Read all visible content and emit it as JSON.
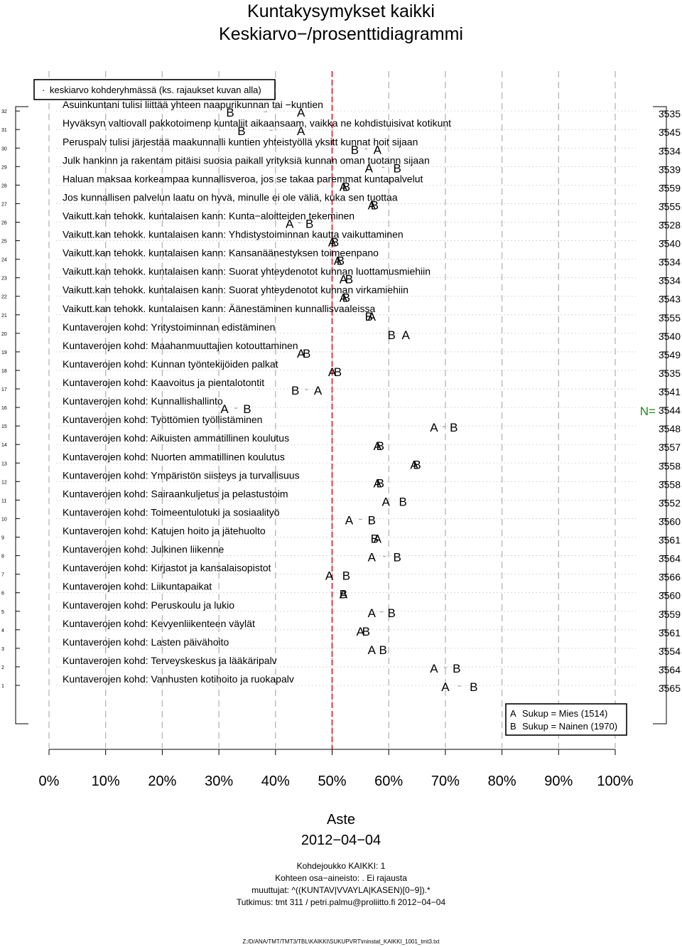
{
  "page": {
    "title_line1": "Kuntakysymykset kaikki",
    "title_line2": "Keskiarvo−/prosenttidiagrammi"
  },
  "footer": {
    "axis_title": "Aste",
    "date": "2012−04−04",
    "lines": [
      "Kohdejoukko KAIKKI: 1",
      "Kohteen osa−aineisto: . Ei rajausta",
      "muuttujat: ^((KUNTAV|VVAYLA|KASEN)[0−9]).*",
      "Tutkimus: tmt 311 / petri.palmu@proliitto.fi 2012−04−04"
    ],
    "file_path": "Z:/D/ANA/TMT/TMT3/TBL\\KAIKKI\\SUKUPVRT\\minstat_KAIKKI_1001_tmt3.txt"
  },
  "chart_data": {
    "type": "scatter",
    "xlim": [
      0,
      100
    ],
    "x_ticks": [
      "0%",
      "10%",
      "20%",
      "30%",
      "40%",
      "50%",
      "60%",
      "70%",
      "80%",
      "90%",
      "100%"
    ],
    "reference_line": 50,
    "reference_color": "#e0181e",
    "grid": true,
    "top_note": "keskiarvo kohderyhmässä (ks. rajaukset kuvan alla)",
    "n_label": "N=",
    "n_label_color": "#1a8a1a",
    "legend_position": "bottom-right",
    "groups": [
      {
        "marker": "A",
        "name": "Sukup = Mies (1514)"
      },
      {
        "marker": "B",
        "name": "Sukup = Nainen (1970)"
      }
    ],
    "items": [
      {
        "row": 32,
        "label": "Asuinkuntani tulisi liittää yhteen naapurikunnan tai −kuntien",
        "a": 44.5,
        "b": 32,
        "n": 3535
      },
      {
        "row": 31,
        "label": "Hyväksyn valtiovall pakkotoimenp kuntaliit aikaansaam, vaikka ne kohdistuisivat kotikunt",
        "a": 44.5,
        "b": 34,
        "n": 3545
      },
      {
        "row": 30,
        "label": "Peruspalv tulisi järjestää maakunnalli kuntien yhteistyöllä yksitt kunnat hoit sijaan",
        "a": 58,
        "b": 54,
        "n": 3534
      },
      {
        "row": 29,
        "label": "Julk hankinn ja rakentam pitäisi suosia paikall yrityksiä kunnan oman tuotann sijaan",
        "a": 56.5,
        "b": 61.5,
        "n": 3539
      },
      {
        "row": 28,
        "label": "Haluan maksaa korkeampaa kunnallisveroa, jos se takaa paremmat kuntapalvelut",
        "a": 52,
        "b": 52.5,
        "n": 3559
      },
      {
        "row": 27,
        "label": "Jos kunnallisen palvelun laatu on hyvä, minulle ei ole väliä, kuka sen tuottaa",
        "a": 57,
        "b": 57.5,
        "n": 3555
      },
      {
        "row": 26,
        "label": "Vaikutt.kan tehokk. kuntalaisen kann: Kunta−aloitteiden tekeminen",
        "a": 42.5,
        "b": 46,
        "n": 3528
      },
      {
        "row": 25,
        "label": "Vaikutt.kan tehokk. kuntalaisen kann: Yhdistystoiminnan kautta vaikuttaminen",
        "a": 50,
        "b": 50.5,
        "n": 3540
      },
      {
        "row": 24,
        "label": "Vaikutt.kan tehokk. kuntalaisen kann: Kansanäänestyksen toimeenpano",
        "a": 51,
        "b": 51.5,
        "n": 3534
      },
      {
        "row": 23,
        "label": "Vaikutt.kan tehokk. kuntalaisen kann: Suorat yhteydenotot kunnan luottamusmiehiin",
        "a": 52,
        "b": 53,
        "n": 3534
      },
      {
        "row": 22,
        "label": "Vaikutt.kan tehokk. kuntalaisen kann: Suorat yhteydenotot kunnan virkamiehiin",
        "a": 52,
        "b": 52.5,
        "n": 3543
      },
      {
        "row": 21,
        "label": "Vaikutt.kan tehokk. kuntalaisen kann: Äänestäminen kunnallisvaaleissa",
        "a": 57,
        "b": 56.5,
        "n": 3555
      },
      {
        "row": 20,
        "label": "Kuntaverojen kohd: Yritystoiminnan edistäminen",
        "a": 63,
        "b": 60.5,
        "n": 3540
      },
      {
        "row": 19,
        "label": "Kuntaverojen kohd: Maahanmuuttajien kotouttaminen",
        "a": 44.5,
        "b": 45.5,
        "n": 3549
      },
      {
        "row": 18,
        "label": "Kuntaverojen kohd: Kunnan työntekijöiden palkat",
        "a": 50,
        "b": 51,
        "n": 3535
      },
      {
        "row": 17,
        "label": "Kuntaverojen kohd: Kaavoitus ja pientalotontit",
        "a": 47.5,
        "b": 43.5,
        "n": 3541
      },
      {
        "row": 16,
        "label": "Kuntaverojen kohd: Kunnallishallinto",
        "a": 31,
        "b": 35,
        "n": 3544
      },
      {
        "row": 15,
        "label": "Kuntaverojen kohd: Työttömien työllistäminen",
        "a": 68,
        "b": 71.5,
        "n": 3548
      },
      {
        "row": 14,
        "label": "Kuntaverojen kohd: Aikuisten ammatillinen koulutus",
        "a": 58,
        "b": 58.5,
        "n": 3557
      },
      {
        "row": 13,
        "label": "Kuntaverojen kohd: Nuorten ammatillinen koulutus",
        "a": 64.5,
        "b": 65,
        "n": 3558
      },
      {
        "row": 12,
        "label": "Kuntaverojen kohd: Ympäristön siisteys ja turvallisuus",
        "a": 58,
        "b": 58.5,
        "n": 3558
      },
      {
        "row": 11,
        "label": "Kuntaverojen kohd: Sairaankuljetus ja pelastustoim",
        "a": 59.5,
        "b": 62.5,
        "n": 3552
      },
      {
        "row": 10,
        "label": "Kuntaverojen kohd: Toimeentulotuki ja sosiaalityö",
        "a": 53,
        "b": 57,
        "n": 3560
      },
      {
        "row": 9,
        "label": "Kuntaverojen kohd: Katujen hoito ja jätehuolto",
        "a": 58,
        "b": 57.5,
        "n": 3561
      },
      {
        "row": 8,
        "label": "Kuntaverojen kohd: Julkinen liikenne",
        "a": 57,
        "b": 61.5,
        "n": 3564
      },
      {
        "row": 7,
        "label": "Kuntaverojen kohd: Kirjastot ja kansalaisopistot",
        "a": 49.5,
        "b": 52.5,
        "n": 3566
      },
      {
        "row": 6,
        "label": "Kuntaverojen kohd: Liikuntapaikat",
        "a": 52,
        "b": 52,
        "n": 3560
      },
      {
        "row": 5,
        "label": "Kuntaverojen kohd: Peruskoulu ja lukio",
        "a": 57,
        "b": 60.5,
        "n": 3559
      },
      {
        "row": 4,
        "label": "Kuntaverojen kohd: Kevyenliikenteen väylät",
        "a": 55,
        "b": 56,
        "n": 3561
      },
      {
        "row": 3,
        "label": "Kuntaverojen kohd: Lasten päivähoito",
        "a": 57,
        "b": 59,
        "n": 3554
      },
      {
        "row": 2,
        "label": "Kuntaverojen kohd: Terveyskeskus ja lääkäripalv",
        "a": 68,
        "b": 72,
        "n": 3564
      },
      {
        "row": 1,
        "label": "Kuntaverojen kohd: Vanhusten kotihoito ja ruokapalv",
        "a": 70,
        "b": 75,
        "n": 3565
      }
    ]
  }
}
